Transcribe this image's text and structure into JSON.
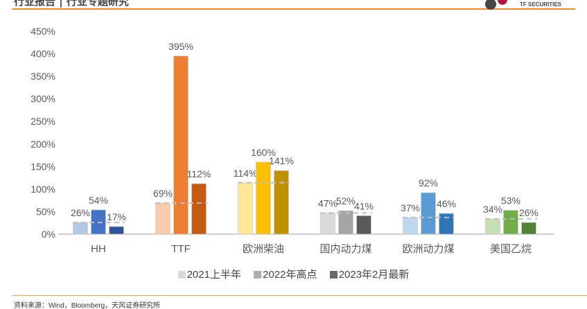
{
  "header": {
    "title": "行业报告 | 行业专题研究",
    "logo_text": "TF SECURITIES"
  },
  "chart_data": {
    "type": "bar",
    "categories": [
      "HH",
      "TTF",
      "欧洲柴油",
      "国内动力煤",
      "欧洲动力煤",
      "美国乙烷"
    ],
    "series": [
      {
        "name": "2021上半年",
        "values": [
          26,
          69,
          114,
          47,
          37,
          34
        ],
        "labels": [
          "26%",
          "69%",
          "114%",
          "47%",
          "37%",
          "34%"
        ]
      },
      {
        "name": "2022年高点",
        "values": [
          54,
          395,
          160,
          52,
          92,
          53
        ],
        "labels": [
          "54%",
          "395%",
          "160%",
          "52%",
          "92%",
          "53%"
        ]
      },
      {
        "name": "2023年2月最新",
        "values": [
          17,
          112,
          141,
          41,
          46,
          26
        ],
        "labels": [
          "17%",
          "112%",
          "141%",
          "41%",
          "46%",
          "26%"
        ]
      }
    ],
    "group_colors": [
      [
        "#b4c7e7",
        "#4472c4",
        "#2f5597"
      ],
      [
        "#f8cbad",
        "#ed7d31",
        "#c55a11"
      ],
      [
        "#ffe699",
        "#ffc000",
        "#bf9000"
      ],
      [
        "#d9d9d9",
        "#a5a5a5",
        "#595959"
      ],
      [
        "#bdd7ee",
        "#5b9bd5",
        "#2e75b6"
      ],
      [
        "#c5e0b4",
        "#70ad47",
        "#548235"
      ]
    ],
    "legend_colors": [
      "#d9d9d9",
      "#b0b0b0",
      "#6a6a6a"
    ],
    "reference_line": "dashed line at 2021上半年 value per group",
    "yticks": [
      "0%",
      "50%",
      "100%",
      "150%",
      "200%",
      "250%",
      "300%",
      "350%",
      "400%",
      "450%"
    ],
    "ylim": [
      0,
      450
    ],
    "grid": false,
    "legend_position": "bottom"
  },
  "footer": {
    "source": "资料来源：Wind，Bloomberg，天风证券研究所"
  }
}
